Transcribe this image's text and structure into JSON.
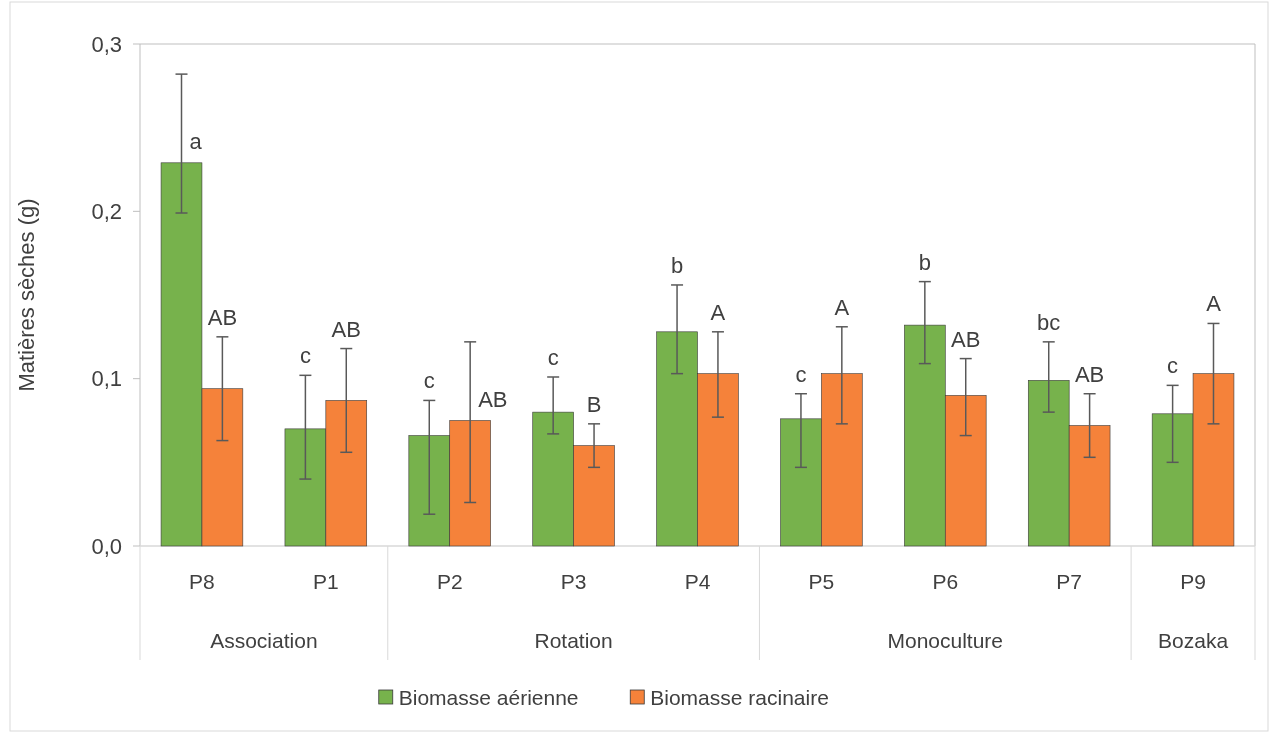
{
  "chart_data": {
    "type": "bar",
    "ylabel": "Matières sèches (g)",
    "categories": [
      "P8",
      "P1",
      "P2",
      "P3",
      "P4",
      "P5",
      "P6",
      "P7",
      "P9"
    ],
    "series": [
      {
        "name": "Biomasse aérienne",
        "color": "#77b24c",
        "values": [
          0.229,
          0.07,
          0.066,
          0.08,
          0.128,
          0.076,
          0.132,
          0.099,
          0.079
        ],
        "errors": [
          [
            0.199,
            0.282
          ],
          [
            0.04,
            0.102
          ],
          [
            0.019,
            0.087
          ],
          [
            0.067,
            0.101
          ],
          [
            0.103,
            0.156
          ],
          [
            0.047,
            0.091
          ],
          [
            0.109,
            0.158
          ],
          [
            0.08,
            0.122
          ],
          [
            0.05,
            0.096
          ]
        ],
        "value_labels": [
          "a",
          "c",
          "c",
          "c",
          "b",
          "c",
          "b",
          "bc",
          "c"
        ]
      },
      {
        "name": "Biomasse racinaire",
        "color": "#f5823a",
        "values": [
          0.094,
          0.087,
          0.075,
          0.06,
          0.103,
          0.103,
          0.09,
          0.072,
          0.103
        ],
        "errors": [
          [
            0.063,
            0.125
          ],
          [
            0.056,
            0.118
          ],
          [
            0.026,
            0.122
          ],
          [
            0.047,
            0.073
          ],
          [
            0.077,
            0.128
          ],
          [
            0.073,
            0.131
          ],
          [
            0.066,
            0.112
          ],
          [
            0.053,
            0.091
          ],
          [
            0.073,
            0.133
          ]
        ],
        "value_labels": [
          "AB",
          "AB",
          "AB",
          "B",
          "A",
          "A",
          "AB",
          "AB",
          "A"
        ]
      }
    ],
    "ylim": [
      0,
      0.3
    ],
    "yticks": [
      {
        "value": 0,
        "label": "0,0"
      },
      {
        "value": 0.1,
        "label": "0,1"
      },
      {
        "value": 0.2,
        "label": "0,2"
      },
      {
        "value": 0.3,
        "label": "0,3"
      }
    ],
    "annotations": [
      "Association",
      "Rotation",
      "Monoculture",
      "Bozaka"
    ],
    "legend": "bottom"
  }
}
